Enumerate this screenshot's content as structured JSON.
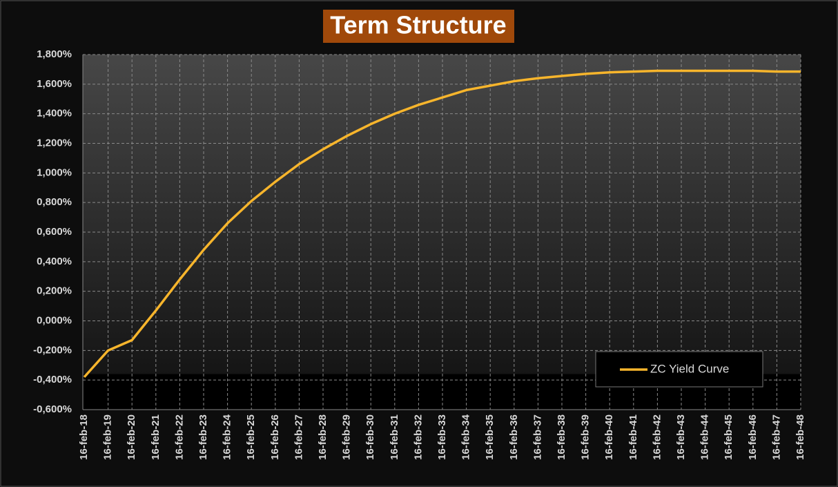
{
  "chart_data": {
    "type": "line",
    "title": "Term Structure",
    "categories": [
      "16-feb-18",
      "16-feb-19",
      "16-feb-20",
      "16-feb-21",
      "16-feb-22",
      "16-feb-23",
      "16-feb-24",
      "16-feb-25",
      "16-feb-26",
      "16-feb-27",
      "16-feb-28",
      "16-feb-29",
      "16-feb-30",
      "16-feb-31",
      "16-feb-32",
      "16-feb-33",
      "16-feb-34",
      "16-feb-35",
      "16-feb-36",
      "16-feb-37",
      "16-feb-38",
      "16-feb-39",
      "16-feb-40",
      "16-feb-41",
      "16-feb-42",
      "16-feb-43",
      "16-feb-44",
      "16-feb-45",
      "16-feb-46",
      "16-feb-47",
      "16-feb-48"
    ],
    "series": [
      {
        "name": "ZC Yield Curve",
        "color": "#f7b52c",
        "values": [
          -0.38,
          -0.2,
          -0.13,
          0.07,
          0.28,
          0.48,
          0.66,
          0.81,
          0.94,
          1.06,
          1.16,
          1.25,
          1.33,
          1.4,
          1.46,
          1.51,
          1.56,
          1.59,
          1.62,
          1.64,
          1.655,
          1.67,
          1.68,
          1.685,
          1.69,
          1.69,
          1.69,
          1.69,
          1.69,
          1.685,
          1.685
        ]
      }
    ],
    "ylim": [
      -0.6,
      1.8
    ],
    "yticks": [
      {
        "value": -0.6,
        "label": "-0,600%"
      },
      {
        "value": -0.4,
        "label": "-0,400%"
      },
      {
        "value": -0.2,
        "label": "-0,200%"
      },
      {
        "value": 0,
        "label": "0,000%"
      },
      {
        "value": 0.2,
        "label": "0,200%"
      },
      {
        "value": 0.4,
        "label": "0,400%"
      },
      {
        "value": 0.6,
        "label": "0,600%"
      },
      {
        "value": 0.8,
        "label": "0,800%"
      },
      {
        "value": 1.0,
        "label": "1,000%"
      },
      {
        "value": 1.2,
        "label": "1,200%"
      },
      {
        "value": 1.4,
        "label": "1,400%"
      },
      {
        "value": 1.6,
        "label": "1,600%"
      },
      {
        "value": 1.8,
        "label": "1,800%"
      }
    ],
    "grid": true,
    "legend": "lower right"
  }
}
